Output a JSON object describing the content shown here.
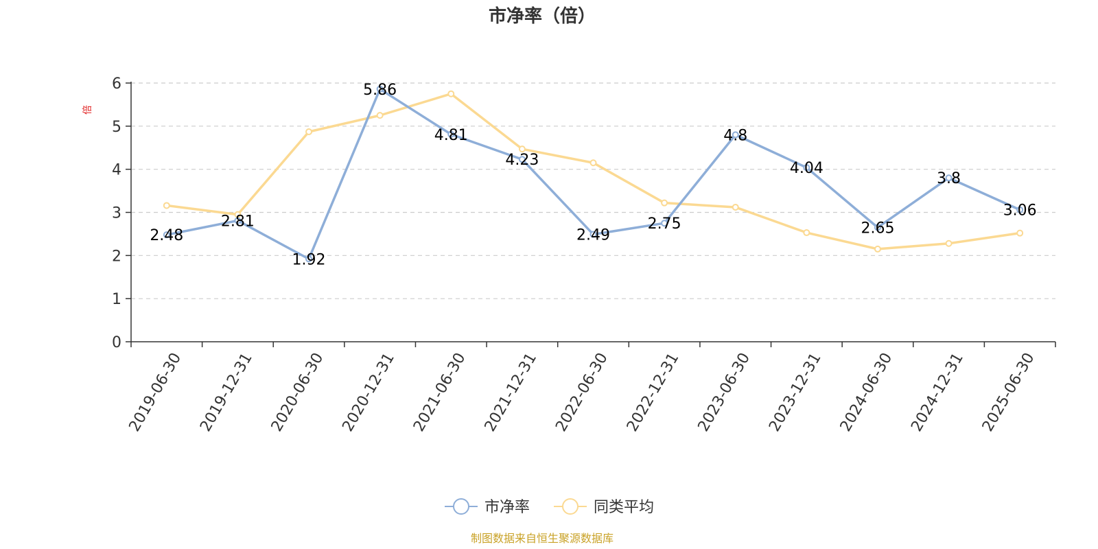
{
  "chart_data": {
    "type": "line",
    "title": "市净率（倍）",
    "ylabel": "倍",
    "xlabel": "",
    "categories": [
      "2019-06-30",
      "2019-12-31",
      "2020-06-30",
      "2020-12-31",
      "2021-06-30",
      "2021-12-31",
      "2022-06-30",
      "2022-12-31",
      "2023-06-30",
      "2023-12-31",
      "2024-06-30",
      "2024-12-31",
      "2025-06-30"
    ],
    "series": [
      {
        "name": "市净率",
        "color": "#8eaed8",
        "show_labels": true,
        "values": [
          2.48,
          2.81,
          1.92,
          5.86,
          4.81,
          4.23,
          2.49,
          2.75,
          4.8,
          4.04,
          2.65,
          3.8,
          3.06
        ]
      },
      {
        "name": "同类平均",
        "color": "#fbd992",
        "show_labels": false,
        "values": [
          3.16,
          2.95,
          4.87,
          5.25,
          5.75,
          4.47,
          4.15,
          3.22,
          3.12,
          2.53,
          2.15,
          2.28,
          2.52
        ]
      }
    ],
    "ylim": [
      0,
      6
    ],
    "yticks": [
      0,
      1,
      2,
      3,
      4,
      5,
      6
    ],
    "grid": true,
    "legend_position": "bottom-center"
  },
  "source_note": "制图数据来自恒生聚源数据库",
  "colors": {
    "ylabel": "#e02020",
    "source": "#c9a227",
    "axis": "#333333",
    "grid": "#cccccc"
  }
}
